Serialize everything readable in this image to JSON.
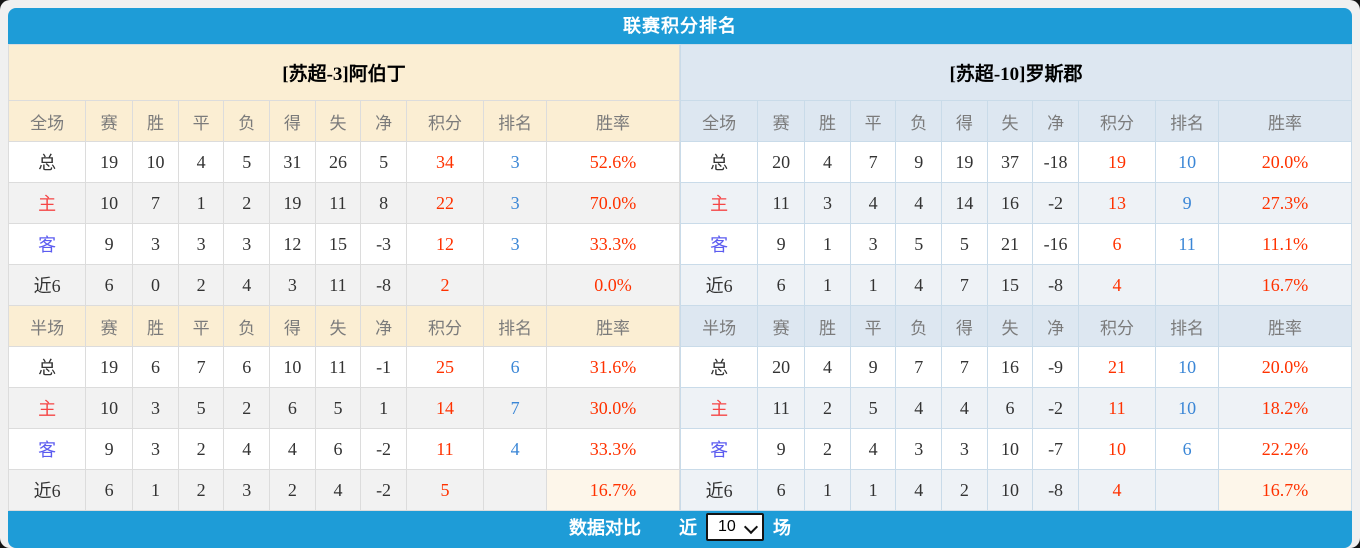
{
  "title_bar": {
    "title": "联赛积分排名"
  },
  "tables": [
    {
      "team": "[苏超-3]阿伯丁",
      "theme": "cream",
      "sections": [
        {
          "scope": "全场",
          "columns": [
            "赛",
            "胜",
            "平",
            "负",
            "得",
            "失",
            "净",
            "积分",
            "排名",
            "胜率"
          ],
          "rows": [
            {
              "label": "总",
              "stats": [
                "19",
                "10",
                "4",
                "5",
                "31",
                "26",
                "5"
              ],
              "points": "34",
              "rank": "3",
              "win_rate": "52.6%"
            },
            {
              "label": "主",
              "stats": [
                "10",
                "7",
                "1",
                "2",
                "19",
                "11",
                "8"
              ],
              "points": "22",
              "rank": "3",
              "win_rate": "70.0%"
            },
            {
              "label": "客",
              "stats": [
                "9",
                "3",
                "3",
                "3",
                "12",
                "15",
                "-3"
              ],
              "points": "12",
              "rank": "3",
              "win_rate": "33.3%"
            },
            {
              "label": "近6",
              "stats": [
                "6",
                "0",
                "2",
                "4",
                "3",
                "11",
                "-8"
              ],
              "points": "2",
              "rank": "",
              "win_rate": "0.0%"
            }
          ]
        },
        {
          "scope": "半场",
          "columns": [
            "赛",
            "胜",
            "平",
            "负",
            "得",
            "失",
            "净",
            "积分",
            "排名",
            "胜率"
          ],
          "rows": [
            {
              "label": "总",
              "stats": [
                "19",
                "6",
                "7",
                "6",
                "10",
                "11",
                "-1"
              ],
              "points": "25",
              "rank": "6",
              "win_rate": "31.6%"
            },
            {
              "label": "主",
              "stats": [
                "10",
                "3",
                "5",
                "2",
                "6",
                "5",
                "1"
              ],
              "points": "14",
              "rank": "7",
              "win_rate": "30.0%"
            },
            {
              "label": "客",
              "stats": [
                "9",
                "3",
                "2",
                "4",
                "4",
                "6",
                "-2"
              ],
              "points": "11",
              "rank": "4",
              "win_rate": "33.3%"
            },
            {
              "label": "近6",
              "stats": [
                "6",
                "1",
                "2",
                "3",
                "2",
                "4",
                "-2"
              ],
              "points": "5",
              "rank": "",
              "win_rate": "16.7%"
            }
          ]
        }
      ]
    },
    {
      "team": "[苏超-10]罗斯郡",
      "theme": "blue",
      "sections": [
        {
          "scope": "全场",
          "columns": [
            "赛",
            "胜",
            "平",
            "负",
            "得",
            "失",
            "净",
            "积分",
            "排名",
            "胜率"
          ],
          "rows": [
            {
              "label": "总",
              "stats": [
                "20",
                "4",
                "7",
                "9",
                "19",
                "37",
                "-18"
              ],
              "points": "19",
              "rank": "10",
              "win_rate": "20.0%"
            },
            {
              "label": "主",
              "stats": [
                "11",
                "3",
                "4",
                "4",
                "14",
                "16",
                "-2"
              ],
              "points": "13",
              "rank": "9",
              "win_rate": "27.3%"
            },
            {
              "label": "客",
              "stats": [
                "9",
                "1",
                "3",
                "5",
                "5",
                "21",
                "-16"
              ],
              "points": "6",
              "rank": "11",
              "win_rate": "11.1%"
            },
            {
              "label": "近6",
              "stats": [
                "6",
                "1",
                "1",
                "4",
                "7",
                "15",
                "-8"
              ],
              "points": "4",
              "rank": "",
              "win_rate": "16.7%"
            }
          ]
        },
        {
          "scope": "半场",
          "columns": [
            "赛",
            "胜",
            "平",
            "负",
            "得",
            "失",
            "净",
            "积分",
            "排名",
            "胜率"
          ],
          "rows": [
            {
              "label": "总",
              "stats": [
                "20",
                "4",
                "9",
                "7",
                "7",
                "16",
                "-9"
              ],
              "points": "21",
              "rank": "10",
              "win_rate": "20.0%"
            },
            {
              "label": "主",
              "stats": [
                "11",
                "2",
                "5",
                "4",
                "4",
                "6",
                "-2"
              ],
              "points": "11",
              "rank": "10",
              "win_rate": "18.2%"
            },
            {
              "label": "客",
              "stats": [
                "9",
                "2",
                "4",
                "3",
                "3",
                "10",
                "-7"
              ],
              "points": "10",
              "rank": "6",
              "win_rate": "22.2%"
            },
            {
              "label": "近6",
              "stats": [
                "6",
                "1",
                "1",
                "4",
                "2",
                "10",
                "-8"
              ],
              "points": "4",
              "rank": "",
              "win_rate": "16.7%"
            }
          ]
        }
      ]
    }
  ],
  "footer": {
    "compare_label": "数据对比",
    "prefix_label": "近",
    "match_count": "10",
    "suffix_label": "场"
  },
  "colors": {
    "accent_blue": "#1E9CD7",
    "value_red": "#FF3200",
    "rank_blue": "#3A86D6",
    "home_red": "#F54545",
    "away_violet": "#5C5CF0",
    "cream_header": "#FBEED3",
    "bluegray_header": "#DDE7F1",
    "cream_light": "#FDF6EA",
    "zebra_left": "#F2F2F2",
    "zebra_right": "#EEF2F6",
    "border_left": "#DCDCDC",
    "border_right": "#C9DBE9",
    "header_text": "#7B7B7B"
  }
}
